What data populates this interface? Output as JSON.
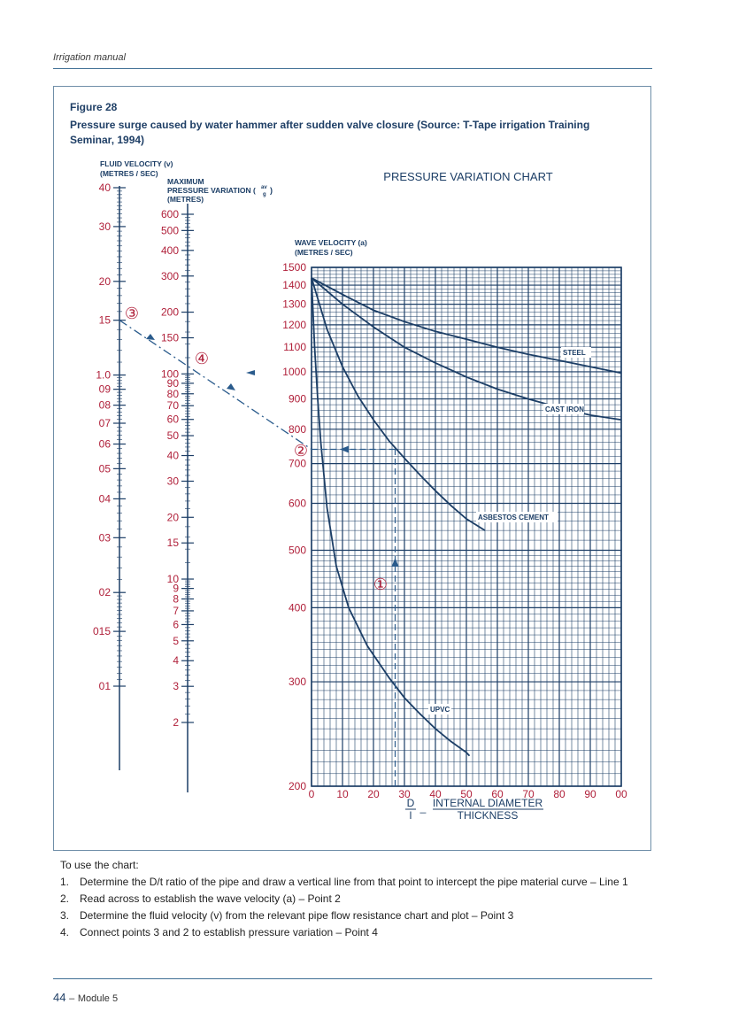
{
  "header": {
    "running_title": "Irrigation manual"
  },
  "figure": {
    "label": "Figure 28",
    "caption": "Pressure surge caused by water hammer after sudden valve closure (Source: T-Tape irrigation Training Seminar, 1994)"
  },
  "chart_data": {
    "type": "line",
    "title": "PRESSURE VARIATION CHART",
    "colors": {
      "line": "#1c3e66",
      "labels": "#b0203a",
      "construction": "#2a5b8c"
    },
    "fluid_velocity_scale": {
      "label_line1": "FLUID VELOCITY (v)",
      "label_line2": "(METRES / SEC)",
      "ticks": [
        {
          "label": "40",
          "v": 4.0
        },
        {
          "label": "30",
          "v": 3.0
        },
        {
          "label": "20",
          "v": 2.0
        },
        {
          "label": "15",
          "v": 1.5
        },
        {
          "label": "1.0",
          "v": 1.0
        },
        {
          "label": "09",
          "v": 0.9
        },
        {
          "label": "08",
          "v": 0.8
        },
        {
          "label": "07",
          "v": 0.7
        },
        {
          "label": "06",
          "v": 0.6
        },
        {
          "label": "05",
          "v": 0.5
        },
        {
          "label": "04",
          "v": 0.4
        },
        {
          "label": "03",
          "v": 0.3
        },
        {
          "label": "02",
          "v": 0.2
        },
        {
          "label": "015",
          "v": 0.15
        },
        {
          "label": "01",
          "v": 0.1
        }
      ]
    },
    "pressure_scale": {
      "label_line1": "MAXIMUM",
      "label_line2": "PRESSURE VARIATION (",
      "label_frac_num": "av",
      "label_frac_den": "g",
      "label_line2_end": ")",
      "label_line3": "(METRES)",
      "ticks": [
        "600",
        "500",
        "400",
        "300",
        "200",
        "150",
        "100",
        "90",
        "80",
        "70",
        "60",
        "50",
        "40",
        "30",
        "20",
        "15",
        "10",
        "9",
        "8",
        "7",
        "6",
        "5",
        "4",
        "3",
        "2"
      ],
      "tick_values": [
        600,
        500,
        400,
        300,
        200,
        150,
        100,
        90,
        80,
        70,
        60,
        50,
        40,
        30,
        20,
        15,
        10,
        9,
        8,
        7,
        6,
        5,
        4,
        3,
        2
      ]
    },
    "wave_velocity_axis": {
      "label_line1": "WAVE VELOCITY (a)",
      "label_line2": "(METRES / SEC)",
      "ticks": [
        "1500",
        "1400",
        "1300",
        "1200",
        "1100",
        "1000",
        "900",
        "800",
        "700",
        "600",
        "500",
        "400",
        "300",
        "200"
      ],
      "tick_values": [
        1500,
        1400,
        1300,
        1200,
        1100,
        1000,
        900,
        800,
        700,
        600,
        500,
        400,
        300,
        200
      ],
      "scale": "log",
      "ylim": [
        200,
        1500
      ]
    },
    "ratio_axis": {
      "ticks": [
        "0",
        "10",
        "20",
        "30",
        "40",
        "50",
        "60",
        "70",
        "80",
        "90",
        "00"
      ],
      "tick_values": [
        0,
        10,
        20,
        30,
        40,
        50,
        60,
        70,
        80,
        90,
        100
      ],
      "xlim": [
        0,
        100
      ],
      "label_left_num": "D",
      "label_left_den": "l",
      "label_dash": "_",
      "label_right_num": "INTERNAL DIAMETER",
      "label_right_den": "THICKNESS"
    },
    "grid": true,
    "series": [
      {
        "name": "STEEL",
        "points": [
          [
            0,
            1440
          ],
          [
            10,
            1350
          ],
          [
            20,
            1270
          ],
          [
            30,
            1215
          ],
          [
            40,
            1170
          ],
          [
            50,
            1135
          ],
          [
            60,
            1100
          ],
          [
            70,
            1070
          ],
          [
            80,
            1045
          ],
          [
            90,
            1020
          ],
          [
            100,
            995
          ]
        ]
      },
      {
        "name": "CAST IRON",
        "points": [
          [
            0,
            1440
          ],
          [
            10,
            1300
          ],
          [
            20,
            1190
          ],
          [
            30,
            1100
          ],
          [
            40,
            1035
          ],
          [
            50,
            980
          ],
          [
            60,
            935
          ],
          [
            70,
            900
          ],
          [
            80,
            870
          ],
          [
            90,
            845
          ],
          [
            100,
            830
          ]
        ]
      },
      {
        "name": "ASBESTOS CEMENT",
        "points": [
          [
            0,
            1440
          ],
          [
            2,
            1330
          ],
          [
            5,
            1180
          ],
          [
            10,
            1020
          ],
          [
            15,
            910
          ],
          [
            20,
            830
          ],
          [
            25,
            765
          ],
          [
            30,
            715
          ],
          [
            35,
            670
          ],
          [
            40,
            630
          ],
          [
            45,
            595
          ],
          [
            50,
            565
          ],
          [
            56,
            540
          ]
        ]
      },
      {
        "name": "UPVC",
        "points": [
          [
            0,
            1440
          ],
          [
            1,
            1100
          ],
          [
            2,
            900
          ],
          [
            3,
            760
          ],
          [
            5,
            590
          ],
          [
            8,
            470
          ],
          [
            12,
            400
          ],
          [
            18,
            345
          ],
          [
            25,
            305
          ],
          [
            30,
            282
          ],
          [
            35,
            265
          ],
          [
            40,
            250
          ],
          [
            45,
            238
          ],
          [
            50,
            228
          ],
          [
            51,
            225
          ]
        ]
      }
    ],
    "annotations": [
      "①",
      "②",
      "③",
      "④"
    ],
    "example": {
      "ratio": 27,
      "wave_velocity": 740,
      "fluid_velocity": 1.5
    }
  },
  "instructions": {
    "intro": "To use the chart:",
    "steps": [
      {
        "num": "1.",
        "text": "Determine the D/t ratio of the pipe and draw a vertical line from that point to intercept the pipe material curve – Line 1"
      },
      {
        "num": "2.",
        "text": "Read across to establish the wave velocity (a) – Point 2"
      },
      {
        "num": "3.",
        "text": "Determine the fluid velocity (v) from the relevant pipe flow resistance chart and plot – Point 3"
      },
      {
        "num": "4.",
        "text": "Connect points 3 and 2 to establish pressure variation – Point 4"
      }
    ]
  },
  "footer": {
    "page_number": "44",
    "dash": "–",
    "module": "Module 5"
  }
}
